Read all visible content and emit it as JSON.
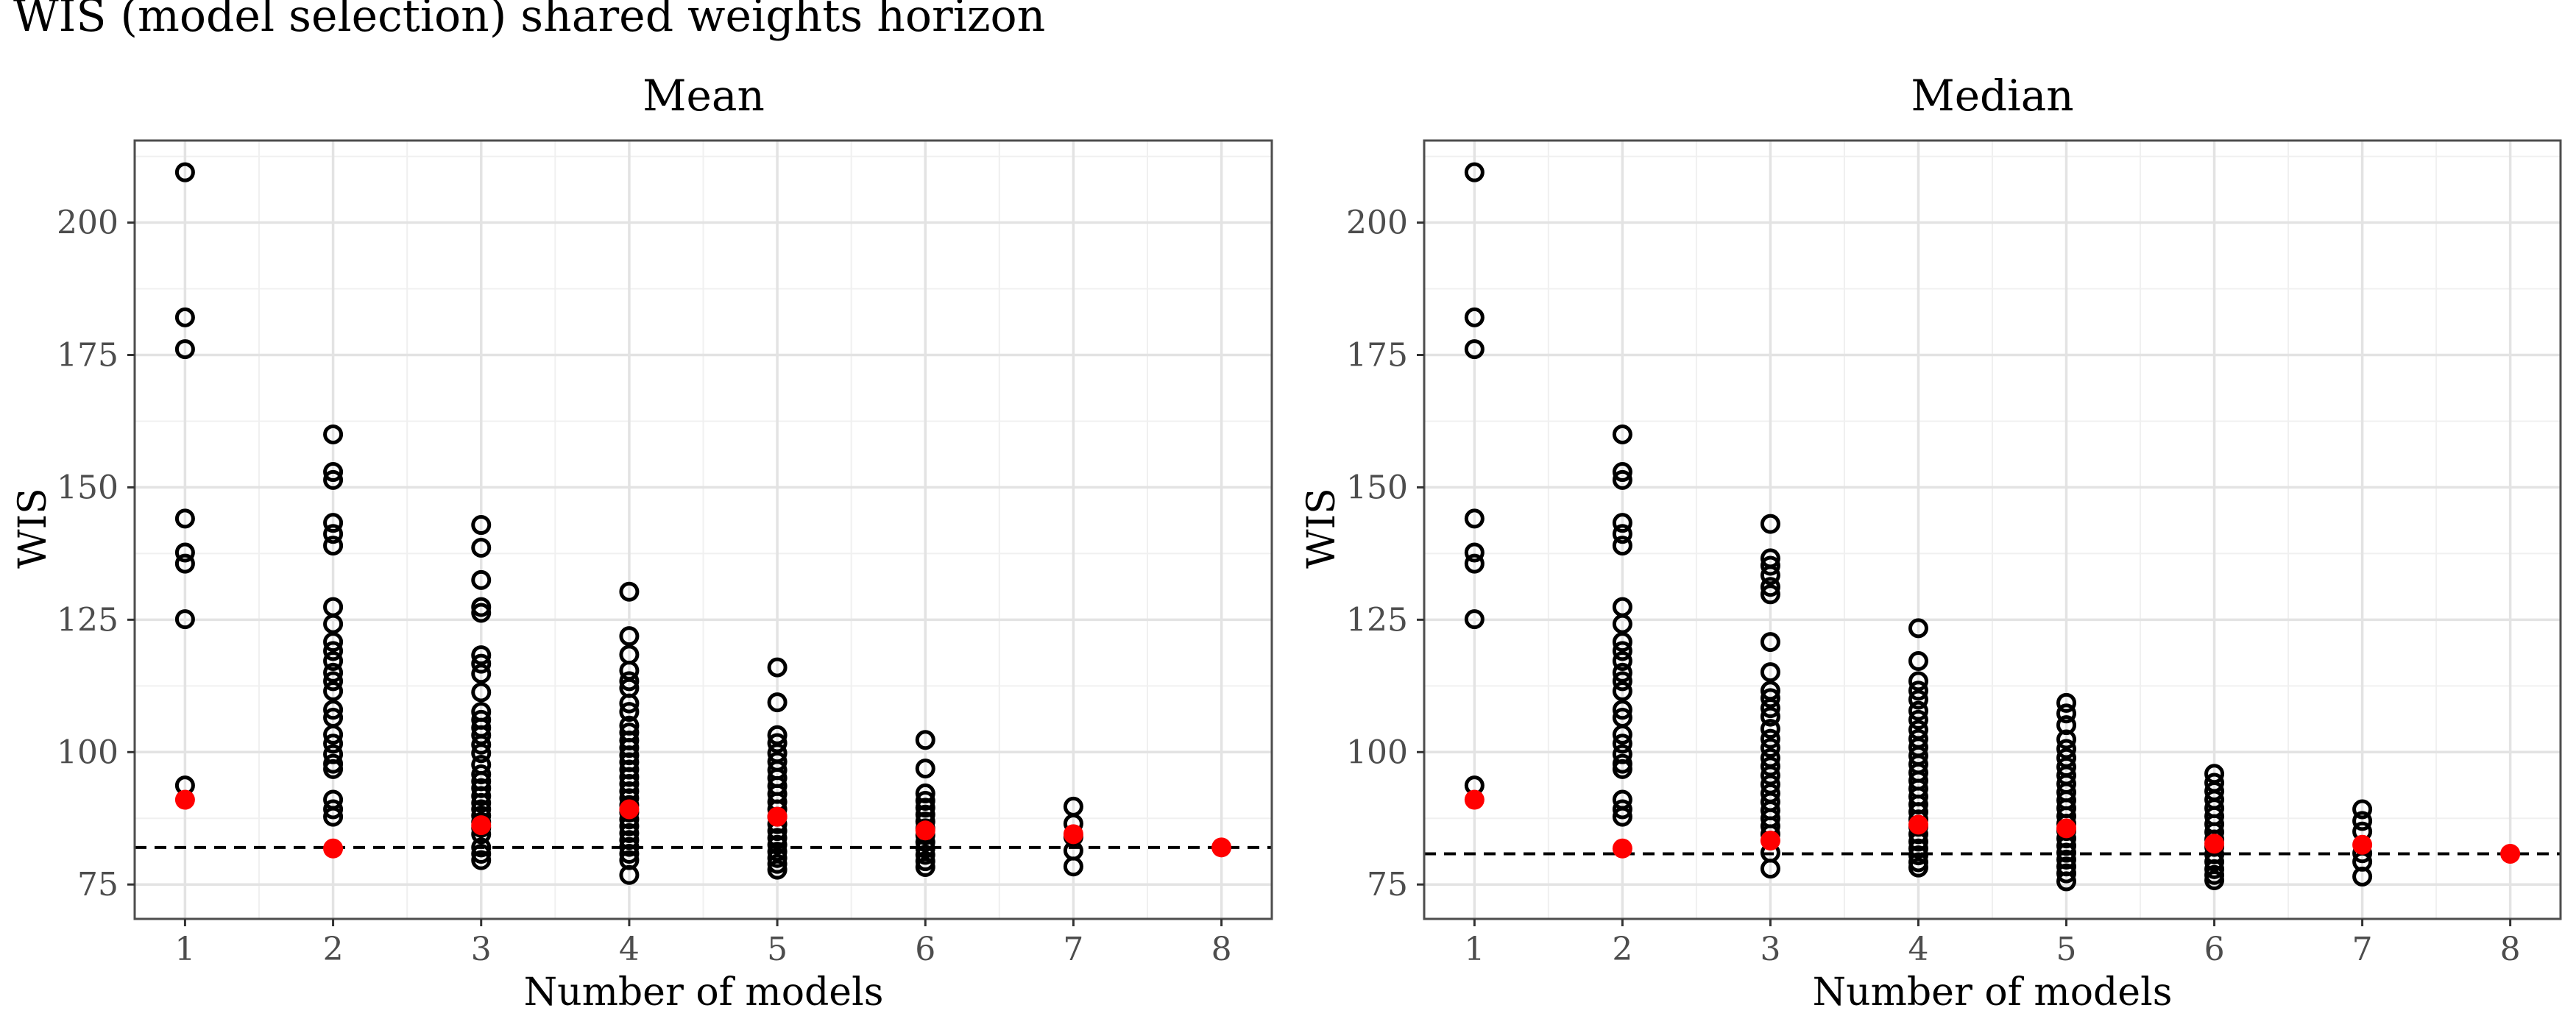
{
  "page_title": "WIS (model selection) shared weights horizon",
  "colors": {
    "panel_background": "#ffffff",
    "grid_major": "#e3e3e3",
    "grid_minor": "#f0f0f0",
    "panel_border": "#4d4d4d",
    "open_point": "#000000",
    "highlight_point": "#ff0000",
    "reference_line": "#000000"
  },
  "chart_data": [
    {
      "type": "scatter",
      "title": "Mean",
      "xlabel": "Number of models",
      "ylabel": "WIS",
      "x_ticks": [
        1,
        2,
        3,
        4,
        5,
        6,
        7,
        8
      ],
      "y_ticks": [
        75,
        100,
        125,
        150,
        175,
        200
      ],
      "xlim": [
        0.66,
        8.34
      ],
      "ylim": [
        68.5,
        215.5
      ],
      "grid": true,
      "reference_line": {
        "style": "dashed",
        "y": 82
      },
      "series": [
        {
          "marker": "open-circle",
          "points": [
            [
              1,
              209.5
            ],
            [
              1,
              182.1
            ],
            [
              1,
              176.1
            ],
            [
              1,
              144.1
            ],
            [
              1,
              137.7
            ],
            [
              1,
              135.6
            ],
            [
              1,
              125.1
            ],
            [
              1,
              93.7
            ],
            [
              2,
              160.0
            ],
            [
              2,
              152.9
            ],
            [
              2,
              151.4
            ],
            [
              2,
              143.3
            ],
            [
              2,
              141.2
            ],
            [
              2,
              139.0
            ],
            [
              2,
              127.4
            ],
            [
              2,
              124.2
            ],
            [
              2,
              120.8
            ],
            [
              2,
              119.1
            ],
            [
              2,
              117.2
            ],
            [
              2,
              115.0
            ],
            [
              2,
              113.4
            ],
            [
              2,
              111.5
            ],
            [
              2,
              108.0
            ],
            [
              2,
              106.5
            ],
            [
              2,
              103.3
            ],
            [
              2,
              101.6
            ],
            [
              2,
              99.6
            ],
            [
              2,
              97.8
            ],
            [
              2,
              96.8
            ],
            [
              2,
              91.0
            ],
            [
              2,
              89.2
            ],
            [
              2,
              87.8
            ],
            [
              3,
              142.9
            ],
            [
              3,
              138.6
            ],
            [
              3,
              132.5
            ],
            [
              3,
              127.4
            ],
            [
              3,
              126.3
            ],
            [
              3,
              118.3
            ],
            [
              3,
              116.7
            ],
            [
              3,
              114.8
            ],
            [
              3,
              111.3
            ],
            [
              3,
              107.6
            ],
            [
              3,
              106.1
            ],
            [
              3,
              104.6
            ],
            [
              3,
              103.2
            ],
            [
              3,
              101.4
            ],
            [
              3,
              99.8
            ],
            [
              3,
              97.6
            ],
            [
              3,
              95.8
            ],
            [
              3,
              94.5
            ],
            [
              3,
              93.2
            ],
            [
              3,
              91.7
            ],
            [
              3,
              90.4
            ],
            [
              3,
              89.2
            ],
            [
              3,
              88.0
            ],
            [
              3,
              86.8
            ],
            [
              3,
              85.7
            ],
            [
              3,
              84.5
            ],
            [
              3,
              82.0
            ],
            [
              3,
              80.8
            ],
            [
              3,
              79.6
            ],
            [
              4,
              130.3
            ],
            [
              4,
              121.9
            ],
            [
              4,
              118.4
            ],
            [
              4,
              115.4
            ],
            [
              4,
              113.4
            ],
            [
              4,
              112.1
            ],
            [
              4,
              109.2
            ],
            [
              4,
              107.6
            ],
            [
              4,
              105.0
            ],
            [
              4,
              103.7
            ],
            [
              4,
              102.2
            ],
            [
              4,
              100.8
            ],
            [
              4,
              99.4
            ],
            [
              4,
              98.1
            ],
            [
              4,
              96.7
            ],
            [
              4,
              95.3
            ],
            [
              4,
              94.0
            ],
            [
              4,
              92.6
            ],
            [
              4,
              91.3
            ],
            [
              4,
              90.0
            ],
            [
              4,
              88.6
            ],
            [
              4,
              87.3
            ],
            [
              4,
              86.0
            ],
            [
              4,
              84.7
            ],
            [
              4,
              83.4
            ],
            [
              4,
              82.1
            ],
            [
              4,
              80.8
            ],
            [
              4,
              79.6
            ],
            [
              4,
              76.8
            ],
            [
              5,
              116.0
            ],
            [
              5,
              109.4
            ],
            [
              5,
              103.2
            ],
            [
              5,
              101.7
            ],
            [
              5,
              99.8
            ],
            [
              5,
              98.2
            ],
            [
              5,
              96.6
            ],
            [
              5,
              95.1
            ],
            [
              5,
              93.6
            ],
            [
              5,
              92.1
            ],
            [
              5,
              90.6
            ],
            [
              5,
              89.2
            ],
            [
              5,
              87.8
            ],
            [
              5,
              86.4
            ],
            [
              5,
              85.1
            ],
            [
              5,
              83.8
            ],
            [
              5,
              82.5
            ],
            [
              5,
              81.2
            ],
            [
              5,
              80.0
            ],
            [
              5,
              78.9
            ],
            [
              5,
              77.8
            ],
            [
              6,
              102.3
            ],
            [
              6,
              96.9
            ],
            [
              6,
              92.2
            ],
            [
              6,
              90.8
            ],
            [
              6,
              89.5
            ],
            [
              6,
              88.2
            ],
            [
              6,
              86.9
            ],
            [
              6,
              85.6
            ],
            [
              6,
              84.3
            ],
            [
              6,
              83.0
            ],
            [
              6,
              81.8
            ],
            [
              6,
              80.6
            ],
            [
              6,
              79.4
            ],
            [
              6,
              78.3
            ],
            [
              7,
              89.7
            ],
            [
              7,
              86.5
            ],
            [
              7,
              84.0
            ],
            [
              7,
              81.4
            ],
            [
              7,
              78.4
            ]
          ]
        },
        {
          "marker": "filled-circle",
          "points": [
            [
              1,
              91.0
            ],
            [
              2,
              81.8
            ],
            [
              3,
              86.2
            ],
            [
              4,
              89.2
            ],
            [
              5,
              87.8
            ],
            [
              6,
              85.2
            ],
            [
              7,
              84.5
            ],
            [
              8,
              82.0
            ]
          ]
        }
      ]
    },
    {
      "type": "scatter",
      "title": "Median",
      "xlabel": "Number of models",
      "ylabel": "WIS",
      "x_ticks": [
        1,
        2,
        3,
        4,
        5,
        6,
        7,
        8
      ],
      "y_ticks": [
        75,
        100,
        125,
        150,
        175,
        200
      ],
      "xlim": [
        0.66,
        8.34
      ],
      "ylim": [
        68.5,
        215.5
      ],
      "grid": true,
      "reference_line": {
        "style": "dashed",
        "y": 80.8
      },
      "series": [
        {
          "marker": "open-circle",
          "points": [
            [
              1,
              209.5
            ],
            [
              1,
              182.1
            ],
            [
              1,
              176.1
            ],
            [
              1,
              144.1
            ],
            [
              1,
              137.7
            ],
            [
              1,
              135.6
            ],
            [
              1,
              125.1
            ],
            [
              1,
              93.7
            ],
            [
              2,
              160.0
            ],
            [
              2,
              152.9
            ],
            [
              2,
              151.4
            ],
            [
              2,
              143.3
            ],
            [
              2,
              141.2
            ],
            [
              2,
              139.0
            ],
            [
              2,
              127.4
            ],
            [
              2,
              124.2
            ],
            [
              2,
              120.8
            ],
            [
              2,
              119.1
            ],
            [
              2,
              117.2
            ],
            [
              2,
              115.0
            ],
            [
              2,
              113.4
            ],
            [
              2,
              111.5
            ],
            [
              2,
              108.0
            ],
            [
              2,
              106.5
            ],
            [
              2,
              103.3
            ],
            [
              2,
              101.6
            ],
            [
              2,
              99.6
            ],
            [
              2,
              97.8
            ],
            [
              2,
              96.8
            ],
            [
              2,
              91.0
            ],
            [
              2,
              89.2
            ],
            [
              2,
              87.8
            ],
            [
              3,
              143.1
            ],
            [
              3,
              136.6
            ],
            [
              3,
              135.2
            ],
            [
              3,
              133.4
            ],
            [
              3,
              131.2
            ],
            [
              3,
              129.8
            ],
            [
              3,
              120.8
            ],
            [
              3,
              115.1
            ],
            [
              3,
              111.6
            ],
            [
              3,
              110.2
            ],
            [
              3,
              108.3
            ],
            [
              3,
              106.7
            ],
            [
              3,
              104.4
            ],
            [
              3,
              102.5
            ],
            [
              3,
              100.8
            ],
            [
              3,
              98.9
            ],
            [
              3,
              97.3
            ],
            [
              3,
              95.6
            ],
            [
              3,
              93.9
            ],
            [
              3,
              92.2
            ],
            [
              3,
              90.6
            ],
            [
              3,
              89.0
            ],
            [
              3,
              87.5
            ],
            [
              3,
              86.0
            ],
            [
              3,
              84.5
            ],
            [
              3,
              81.0
            ],
            [
              3,
              78.0
            ],
            [
              4,
              123.4
            ],
            [
              4,
              117.2
            ],
            [
              4,
              113.4
            ],
            [
              4,
              111.6
            ],
            [
              4,
              109.9
            ],
            [
              4,
              107.8
            ],
            [
              4,
              106.1
            ],
            [
              4,
              104.2
            ],
            [
              4,
              102.5
            ],
            [
              4,
              100.9
            ],
            [
              4,
              99.3
            ],
            [
              4,
              97.7
            ],
            [
              4,
              96.1
            ],
            [
              4,
              94.6
            ],
            [
              4,
              93.1
            ],
            [
              4,
              91.6
            ],
            [
              4,
              90.1
            ],
            [
              4,
              88.7
            ],
            [
              4,
              87.3
            ],
            [
              4,
              85.9
            ],
            [
              4,
              84.5
            ],
            [
              4,
              83.1
            ],
            [
              4,
              81.8
            ],
            [
              4,
              80.5
            ],
            [
              4,
              79.2
            ],
            [
              4,
              78.2
            ],
            [
              5,
              109.3
            ],
            [
              5,
              107.3
            ],
            [
              5,
              105.1
            ],
            [
              5,
              102.4
            ],
            [
              5,
              100.6
            ],
            [
              5,
              98.9
            ],
            [
              5,
              97.2
            ],
            [
              5,
              95.6
            ],
            [
              5,
              94.0
            ],
            [
              5,
              92.4
            ],
            [
              5,
              90.9
            ],
            [
              5,
              89.4
            ],
            [
              5,
              87.9
            ],
            [
              5,
              86.5
            ],
            [
              5,
              85.1
            ],
            [
              5,
              83.7
            ],
            [
              5,
              82.3
            ],
            [
              5,
              81.0
            ],
            [
              5,
              79.7
            ],
            [
              5,
              78.4
            ],
            [
              5,
              77.1
            ],
            [
              5,
              75.6
            ],
            [
              6,
              95.9
            ],
            [
              6,
              94.2
            ],
            [
              6,
              92.6
            ],
            [
              6,
              91.0
            ],
            [
              6,
              89.4
            ],
            [
              6,
              87.9
            ],
            [
              6,
              86.4
            ],
            [
              6,
              84.9
            ],
            [
              6,
              83.5
            ],
            [
              6,
              82.1
            ],
            [
              6,
              80.7
            ],
            [
              6,
              79.3
            ],
            [
              6,
              77.9
            ],
            [
              6,
              76.8
            ],
            [
              6,
              75.8
            ],
            [
              7,
              89.2
            ],
            [
              7,
              87.0
            ],
            [
              7,
              85.0
            ],
            [
              7,
              80.9
            ],
            [
              7,
              79.3
            ],
            [
              7,
              76.5
            ]
          ]
        },
        {
          "marker": "filled-circle",
          "points": [
            [
              1,
              91.0
            ],
            [
              2,
              81.8
            ],
            [
              3,
              83.3
            ],
            [
              4,
              86.3
            ],
            [
              5,
              85.6
            ],
            [
              6,
              82.7
            ],
            [
              7,
              82.5
            ],
            [
              8,
              80.8
            ]
          ]
        }
      ]
    }
  ]
}
